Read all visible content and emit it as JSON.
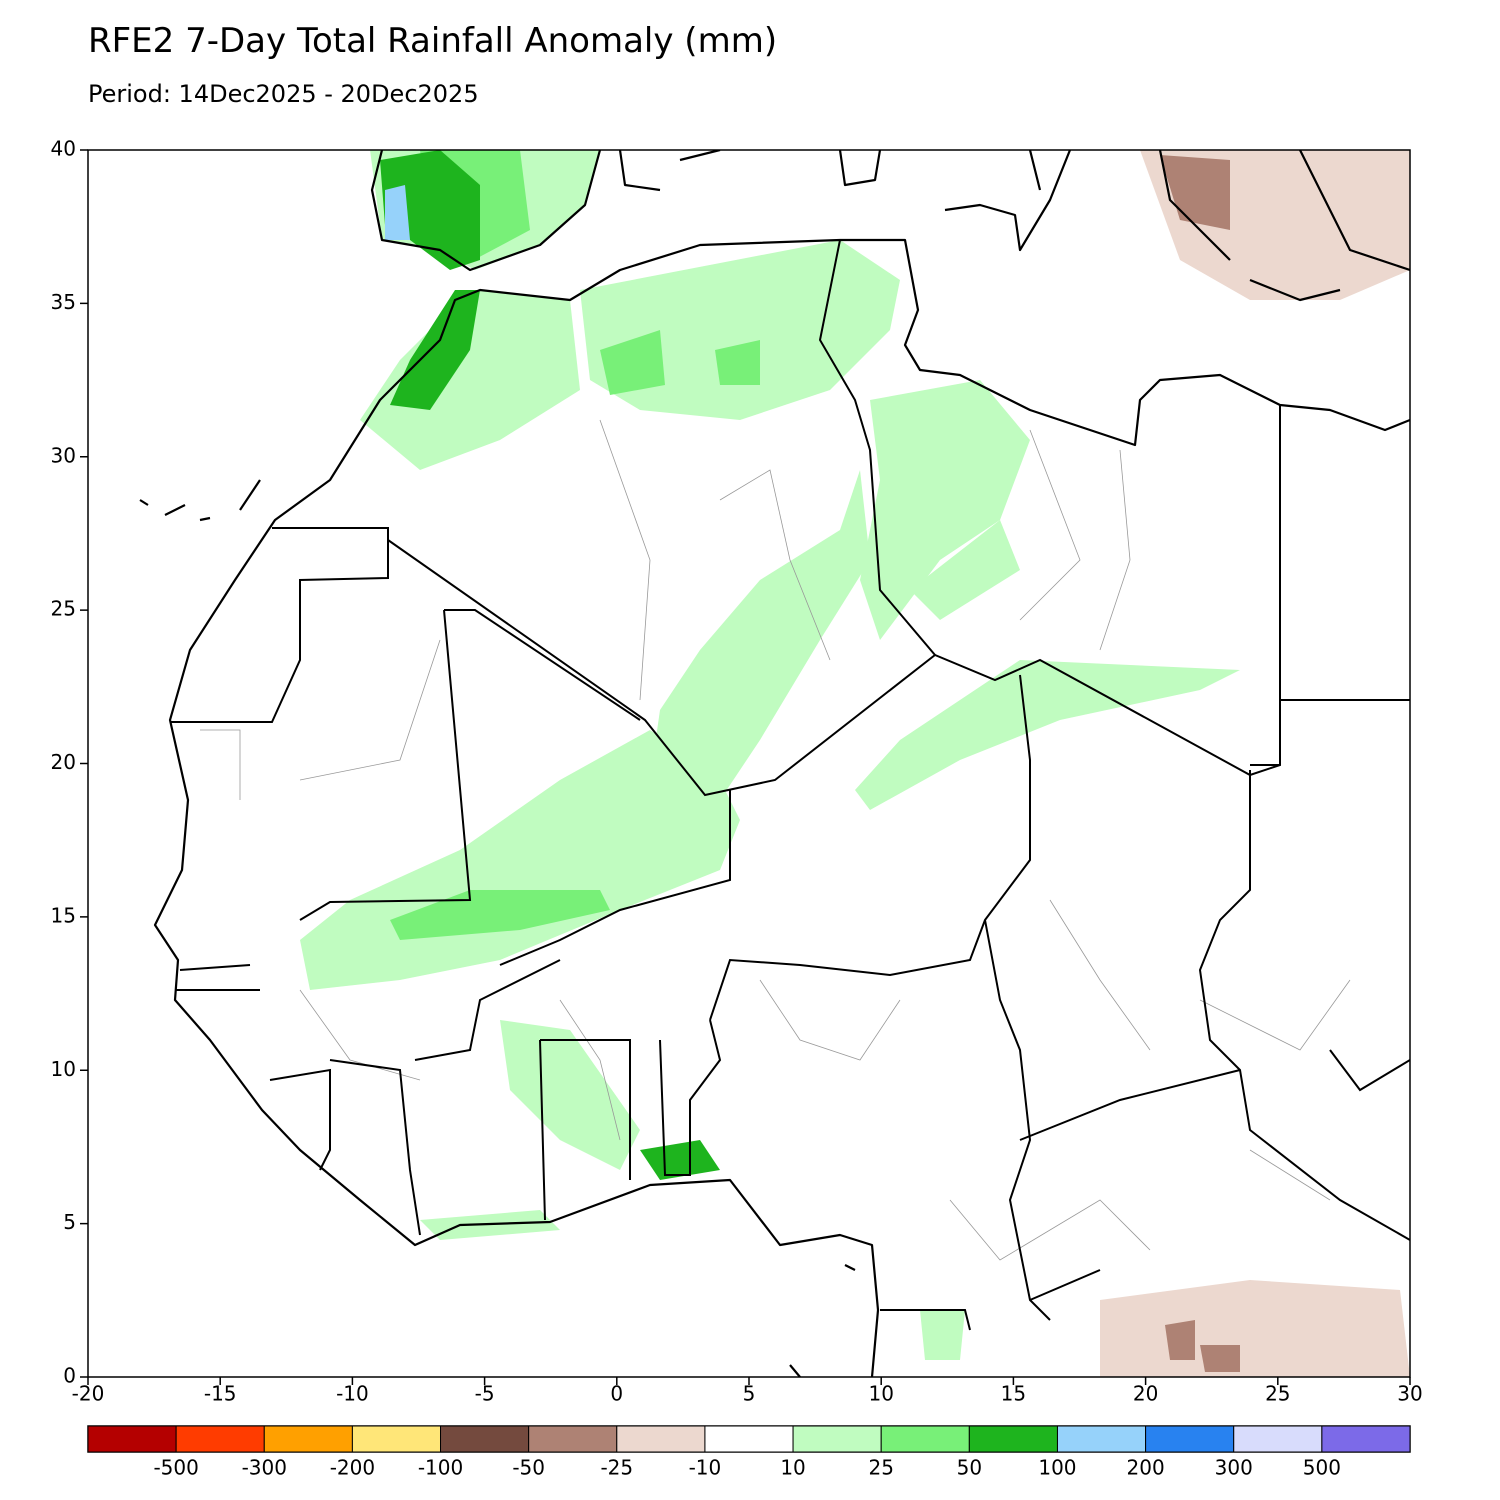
{
  "title": "RFE2 7-Day Total Rainfall Anomaly (mm)",
  "subtitle": "Period: 14Dec2025 - 20Dec2025",
  "map": {
    "xlim": [
      -20,
      30
    ],
    "ylim": [
      0,
      40
    ],
    "xticks": [
      -20,
      -15,
      -10,
      -5,
      0,
      5,
      10,
      15,
      20,
      25,
      30
    ],
    "yticks": [
      0,
      5,
      10,
      15,
      20,
      25,
      30,
      35,
      40
    ]
  },
  "legend": {
    "colors": [
      "#b40000",
      "#ff3c00",
      "#ffa000",
      "#ffe678",
      "#744a3e",
      "#ae8274",
      "#ecd8cf",
      "#ffffff",
      "#c0fcc0",
      "#78f078",
      "#1eb41e",
      "#96d2fa",
      "#2882f0",
      "#d8dcfc",
      "#7c6ae8"
    ],
    "labels": [
      -500,
      -300,
      -200,
      -100,
      -50,
      -25,
      -10,
      10,
      25,
      50,
      100,
      200,
      300,
      500
    ]
  }
}
